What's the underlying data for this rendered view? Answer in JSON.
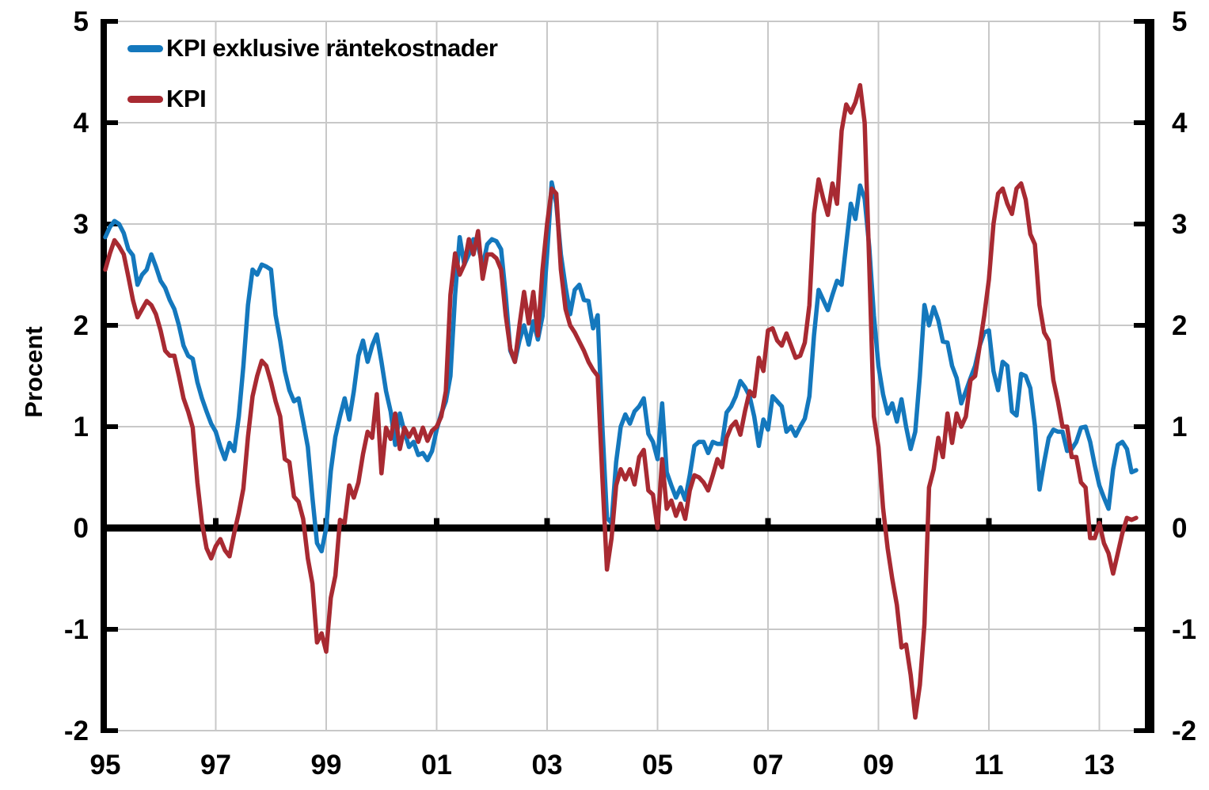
{
  "page": {
    "background": "#ffffff"
  },
  "chart_data": {
    "type": "line",
    "title": "",
    "ylabel": "Procent",
    "grid": true,
    "legend_position": "top-left",
    "zero_line": true,
    "x_axis": {
      "start": "1995-01",
      "end": "2013-09",
      "frequency": "monthly",
      "tick_labels": [
        "95",
        "97",
        "99",
        "01",
        "03",
        "05",
        "07",
        "09",
        "11",
        "13"
      ]
    },
    "y_axis": {
      "min": -2,
      "max": 5,
      "ticks": [
        5,
        4,
        3,
        2,
        1,
        0,
        -1,
        -2
      ],
      "tick_labels": [
        "5",
        "4",
        "3",
        "2",
        "1",
        "0",
        "-1",
        "-2"
      ],
      "sides": "both"
    },
    "colors": {
      "axis": "#000000",
      "gridline": "#c8c8c8",
      "background": "#ffffff"
    },
    "series": [
      {
        "name": "KPI exklusive räntekostnader",
        "color": "#1478bd",
        "values": [
          2.87,
          2.97,
          3.03,
          3.0,
          2.91,
          2.75,
          2.69,
          2.4,
          2.5,
          2.55,
          2.7,
          2.58,
          2.44,
          2.37,
          2.25,
          2.16,
          2.0,
          1.8,
          1.7,
          1.67,
          1.44,
          1.28,
          1.15,
          1.03,
          0.95,
          0.8,
          0.68,
          0.84,
          0.76,
          1.1,
          1.6,
          2.2,
          2.55,
          2.5,
          2.6,
          2.58,
          2.55,
          2.1,
          1.85,
          1.55,
          1.36,
          1.25,
          1.28,
          1.05,
          0.8,
          0.3,
          -0.15,
          -0.23,
          0.0,
          0.56,
          0.9,
          1.1,
          1.28,
          1.07,
          1.35,
          1.7,
          1.85,
          1.64,
          1.8,
          1.91,
          1.64,
          1.35,
          1.15,
          0.82,
          1.13,
          0.95,
          0.8,
          0.85,
          0.72,
          0.74,
          0.67,
          0.76,
          0.97,
          1.13,
          1.25,
          1.5,
          2.3,
          2.87,
          2.6,
          2.7,
          2.85,
          2.79,
          2.58,
          2.8,
          2.85,
          2.83,
          2.75,
          2.3,
          1.75,
          1.64,
          1.85,
          2.0,
          1.81,
          2.04,
          1.86,
          2.09,
          2.7,
          3.41,
          3.2,
          2.7,
          2.38,
          2.11,
          2.35,
          2.4,
          2.25,
          2.24,
          1.97,
          2.1,
          1.0,
          0.1,
          0.05,
          0.65,
          1.0,
          1.12,
          1.03,
          1.15,
          1.2,
          1.28,
          0.93,
          0.85,
          0.68,
          1.23,
          0.55,
          0.42,
          0.3,
          0.4,
          0.28,
          0.52,
          0.81,
          0.85,
          0.85,
          0.74,
          0.85,
          0.83,
          0.83,
          1.14,
          1.2,
          1.3,
          1.45,
          1.39,
          1.3,
          1.1,
          0.81,
          1.07,
          0.97,
          1.3,
          1.25,
          1.2,
          0.95,
          1.0,
          0.91,
          1.0,
          1.08,
          1.3,
          1.9,
          2.35,
          2.25,
          2.15,
          2.3,
          2.44,
          2.4,
          2.8,
          3.2,
          3.05,
          3.38,
          3.25,
          2.77,
          2.1,
          1.6,
          1.32,
          1.13,
          1.23,
          1.05,
          1.27,
          1.0,
          0.78,
          0.95,
          1.5,
          2.2,
          2.0,
          2.18,
          2.05,
          1.84,
          1.83,
          1.6,
          1.48,
          1.23,
          1.35,
          1.48,
          1.6,
          1.8,
          1.93,
          1.95,
          1.55,
          1.36,
          1.64,
          1.6,
          1.15,
          1.11,
          1.52,
          1.5,
          1.38,
          1.01,
          0.38,
          0.65,
          0.89,
          0.97,
          0.95,
          0.95,
          0.76,
          0.78,
          0.85,
          0.99,
          1.0,
          0.85,
          0.62,
          0.42,
          0.3,
          0.19,
          0.58,
          0.82,
          0.85,
          0.78,
          0.55,
          0.57
        ]
      },
      {
        "name": "KPI",
        "color": "#a82a32",
        "values": [
          2.55,
          2.71,
          2.84,
          2.78,
          2.7,
          2.48,
          2.25,
          2.08,
          2.16,
          2.24,
          2.2,
          2.11,
          1.95,
          1.75,
          1.7,
          1.7,
          1.5,
          1.28,
          1.15,
          0.99,
          0.45,
          0.05,
          -0.2,
          -0.3,
          -0.18,
          -0.11,
          -0.22,
          -0.28,
          -0.05,
          0.15,
          0.39,
          0.9,
          1.3,
          1.5,
          1.65,
          1.6,
          1.44,
          1.25,
          1.1,
          0.68,
          0.65,
          0.31,
          0.26,
          0.09,
          -0.3,
          -0.55,
          -1.13,
          -1.04,
          -1.22,
          -0.69,
          -0.47,
          0.08,
          0.05,
          0.42,
          0.3,
          0.45,
          0.73,
          0.95,
          0.89,
          1.32,
          0.54,
          0.99,
          0.88,
          1.13,
          0.78,
          0.99,
          0.9,
          0.98,
          0.85,
          0.99,
          0.86,
          0.96,
          1.0,
          1.1,
          1.35,
          2.3,
          2.71,
          2.5,
          2.6,
          2.85,
          2.7,
          2.93,
          2.46,
          2.7,
          2.7,
          2.66,
          2.55,
          2.1,
          1.77,
          1.64,
          2.0,
          2.33,
          2.02,
          2.33,
          1.9,
          2.55,
          3.0,
          3.35,
          3.3,
          2.55,
          2.16,
          2.0,
          1.93,
          1.84,
          1.75,
          1.64,
          1.56,
          1.5,
          0.5,
          -0.41,
          -0.1,
          0.42,
          0.58,
          0.48,
          0.58,
          0.43,
          0.7,
          0.77,
          0.37,
          0.33,
          0.0,
          0.68,
          0.19,
          0.27,
          0.12,
          0.24,
          0.09,
          0.37,
          0.52,
          0.5,
          0.45,
          0.37,
          0.52,
          0.68,
          0.6,
          0.89,
          1.0,
          1.05,
          0.92,
          1.15,
          1.35,
          1.3,
          1.68,
          1.55,
          1.95,
          1.97,
          1.85,
          1.8,
          1.92,
          1.8,
          1.68,
          1.7,
          1.83,
          2.2,
          3.1,
          3.44,
          3.25,
          3.09,
          3.4,
          3.2,
          3.92,
          4.18,
          4.1,
          4.2,
          4.37,
          4.0,
          2.6,
          1.1,
          0.8,
          0.2,
          -0.2,
          -0.5,
          -0.76,
          -1.18,
          -1.15,
          -1.45,
          -1.87,
          -1.55,
          -0.95,
          0.4,
          0.58,
          0.89,
          0.7,
          1.13,
          0.84,
          1.13,
          1.0,
          1.1,
          1.46,
          1.5,
          1.8,
          2.1,
          2.45,
          3.0,
          3.3,
          3.35,
          3.2,
          3.1,
          3.35,
          3.4,
          3.24,
          2.9,
          2.8,
          2.2,
          1.93,
          1.85,
          1.46,
          1.25,
          1.0,
          1.0,
          0.7,
          0.7,
          0.45,
          0.4,
          -0.1,
          -0.1,
          0.05,
          -0.15,
          -0.25,
          -0.45,
          -0.25,
          -0.05,
          0.1,
          0.08,
          0.1
        ]
      }
    ]
  }
}
